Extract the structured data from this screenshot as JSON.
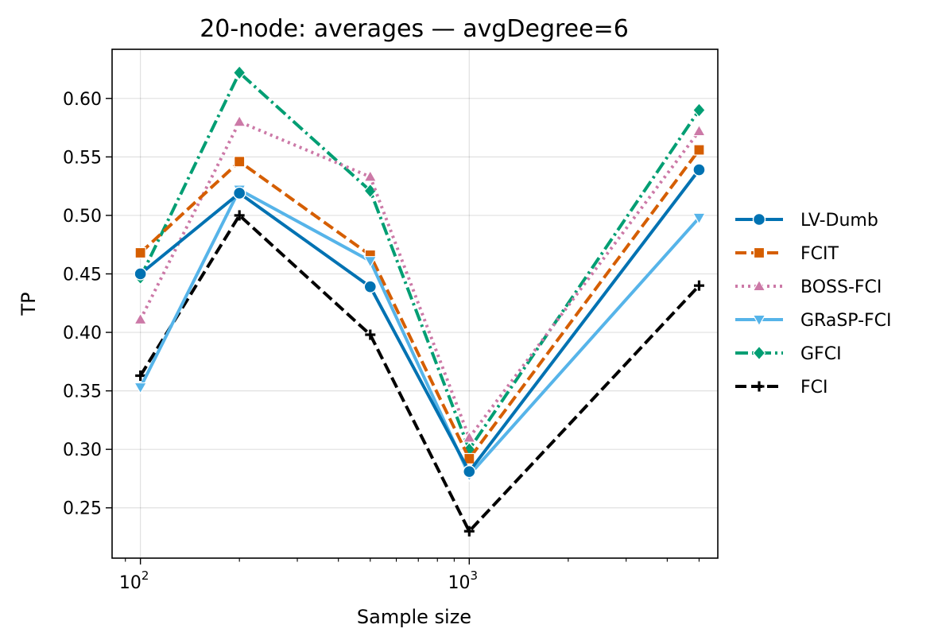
{
  "chart_data": {
    "type": "line",
    "title": "20-node: averages — avgDegree=6",
    "xlabel": "Sample size",
    "ylabel": "TP",
    "xscale": "log",
    "xlim": [
      82,
      5700
    ],
    "ylim": [
      0.207,
      0.642
    ],
    "grid": true,
    "legend_position": "right",
    "x": [
      100,
      200,
      500,
      1000,
      5000
    ],
    "x_ticks": [
      {
        "value": 100,
        "base": "10",
        "exp": "2"
      },
      {
        "value": 1000,
        "base": "10",
        "exp": "3"
      }
    ],
    "y_ticks": [
      {
        "value": 0.25,
        "label": "0.25"
      },
      {
        "value": 0.3,
        "label": "0.30"
      },
      {
        "value": 0.35,
        "label": "0.35"
      },
      {
        "value": 0.4,
        "label": "0.40"
      },
      {
        "value": 0.45,
        "label": "0.45"
      },
      {
        "value": 0.5,
        "label": "0.50"
      },
      {
        "value": 0.55,
        "label": "0.55"
      },
      {
        "value": 0.6,
        "label": "0.60"
      }
    ],
    "series": [
      {
        "name": "FCI",
        "values": [
          0.363,
          0.5,
          0.398,
          0.23,
          0.44
        ],
        "color": "#000000",
        "dash": "dashed",
        "marker": "plus"
      },
      {
        "name": "GFCI",
        "values": [
          0.447,
          0.622,
          0.521,
          0.3,
          0.59
        ],
        "color": "#009E73",
        "dash": "dashdot",
        "marker": "diamond"
      },
      {
        "name": "BOSS-FCI",
        "values": [
          0.411,
          0.58,
          0.533,
          0.31,
          0.572
        ],
        "color": "#CC79A7",
        "dash": "dotted",
        "marker": "triangle-up"
      },
      {
        "name": "FCIT",
        "values": [
          0.468,
          0.546,
          0.466,
          0.292,
          0.556
        ],
        "color": "#D55E00",
        "dash": "dashed",
        "marker": "square"
      },
      {
        "name": "GRaSP-FCI",
        "values": [
          0.353,
          0.522,
          0.461,
          0.278,
          0.498
        ],
        "color": "#56B4E9",
        "dash": "solid",
        "marker": "triangle-down"
      },
      {
        "name": "LV-Dumb",
        "values": [
          0.45,
          0.519,
          0.439,
          0.281,
          0.539
        ],
        "color": "#0072B2",
        "dash": "solid",
        "marker": "circle"
      }
    ],
    "legend_order": [
      "LV-Dumb",
      "FCIT",
      "BOSS-FCI",
      "GRaSP-FCI",
      "GFCI",
      "FCI"
    ]
  }
}
